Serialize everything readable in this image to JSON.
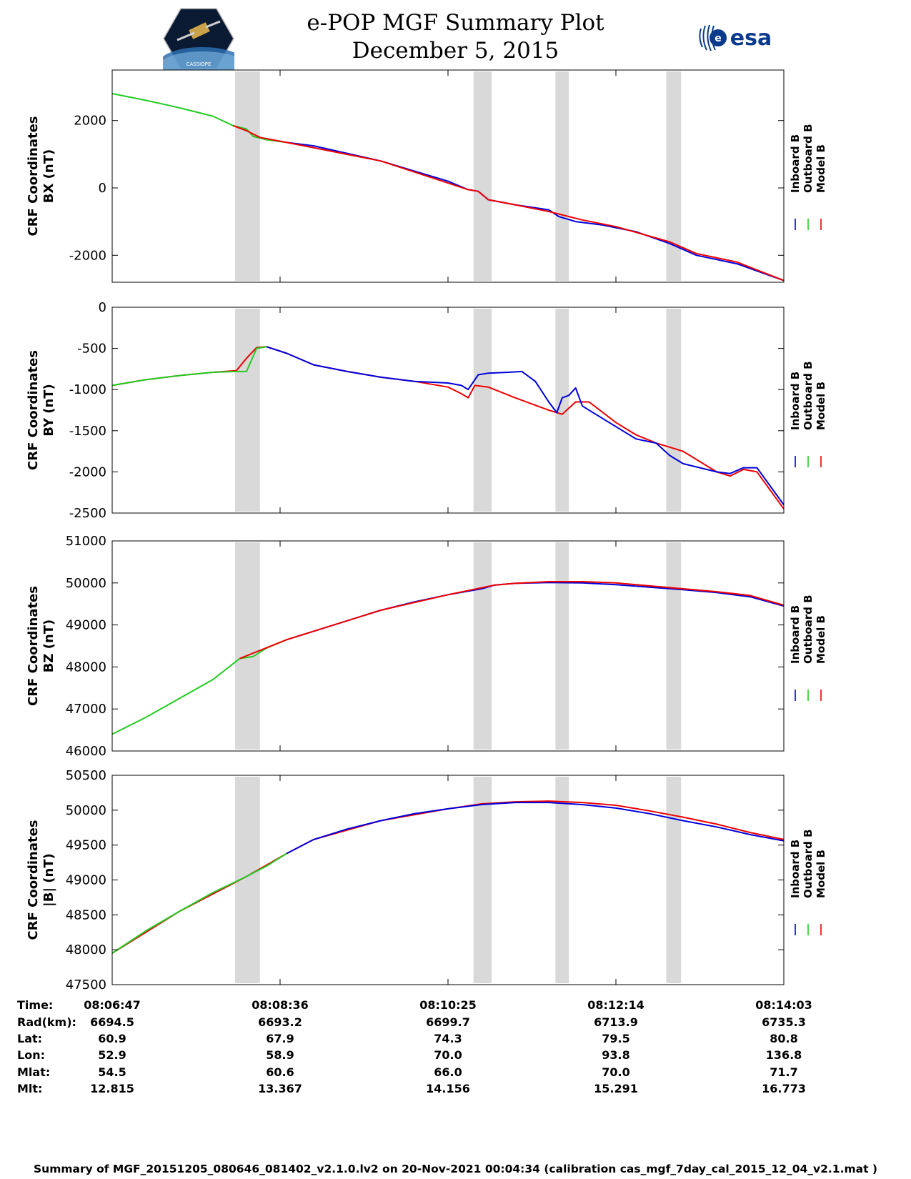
{
  "header": {
    "title": "e-POP MGF Summary Plot",
    "date": "December 5, 2015",
    "esa_logo_text": "esa",
    "cassiope_logo_text": "CASSIOPE"
  },
  "colors": {
    "inboard": "#0000dd",
    "outboard": "#22cc22",
    "model": "#ee0000",
    "shade": "#d9d9d9"
  },
  "legend": [
    "Inboard B",
    "Outboard B",
    "Model B"
  ],
  "chart_data": [
    {
      "type": "line",
      "id": "bx",
      "ylabel_line1": "CRF Coordinates",
      "ylabel_line2": "BX (nT)",
      "ylim": [
        -2800,
        3500
      ],
      "yticks": [
        2000,
        0,
        -2000
      ],
      "shaded_minutes": [
        [
          1.83,
          2.2
        ],
        [
          5.38,
          5.65
        ],
        [
          6.6,
          6.8
        ],
        [
          8.25,
          8.47
        ]
      ],
      "series": [
        {
          "name": "Outboard B",
          "x": [
            0,
            0.5,
            1.0,
            1.5,
            1.8,
            2.0,
            2.1,
            2.3,
            2.6
          ],
          "y": [
            2800,
            2600,
            2380,
            2130,
            1850,
            1750,
            1530,
            1430,
            1350
          ]
        },
        {
          "name": "Inboard B",
          "x": [
            2.6,
            3.0,
            4.0,
            5.0,
            5.3,
            5.45,
            5.6,
            6.0,
            6.5,
            6.65,
            6.9,
            7.3,
            7.8,
            8.3,
            8.7,
            9.3,
            10.0
          ],
          "y": [
            1350,
            1250,
            800,
            200,
            -50,
            -100,
            -350,
            -500,
            -650,
            -850,
            -1000,
            -1100,
            -1300,
            -1650,
            -2000,
            -2250,
            -2750
          ]
        },
        {
          "name": "Model B",
          "x": [
            1.8,
            2.0,
            2.2,
            2.6,
            4.0,
            5.3,
            5.45,
            5.6,
            6.0,
            6.5,
            7.0,
            7.5,
            8.3,
            8.7,
            9.3,
            10.0
          ],
          "y": [
            1850,
            1700,
            1500,
            1350,
            800,
            -50,
            -100,
            -350,
            -500,
            -700,
            -950,
            -1150,
            -1600,
            -1950,
            -2200,
            -2750
          ]
        }
      ]
    },
    {
      "type": "line",
      "id": "by",
      "ylabel_line1": "CRF Coordinates",
      "ylabel_line2": "BY (nT)",
      "ylim": [
        -2500,
        0
      ],
      "yticks": [
        0,
        -500,
        -1000,
        -1500,
        -2000,
        -2500
      ],
      "shaded_minutes": [
        [
          1.83,
          2.2
        ],
        [
          5.38,
          5.65
        ],
        [
          6.6,
          6.8
        ],
        [
          8.25,
          8.47
        ]
      ],
      "series": [
        {
          "name": "Model B",
          "x": [
            0,
            0.5,
            1.0,
            1.5,
            1.85,
            2.0,
            2.15,
            2.3,
            2.6,
            3.0,
            3.5,
            4.0,
            4.5,
            5.0,
            5.2,
            5.3,
            5.4,
            5.6,
            6.0,
            6.5,
            6.7,
            6.9,
            7.1,
            7.5,
            7.8,
            8.1,
            8.5,
            9.0,
            9.2,
            9.4,
            9.6,
            10.0
          ],
          "y": [
            -950,
            -880,
            -830,
            -790,
            -770,
            -620,
            -490,
            -480,
            -560,
            -700,
            -780,
            -850,
            -900,
            -970,
            -1050,
            -1100,
            -950,
            -970,
            -1100,
            -1250,
            -1300,
            -1150,
            -1150,
            -1400,
            -1550,
            -1650,
            -1750,
            -2000,
            -2050,
            -1970,
            -2000,
            -2450
          ]
        },
        {
          "name": "Inboard B",
          "x": [
            2.3,
            2.6,
            3.0,
            3.5,
            4.0,
            4.5,
            5.0,
            5.2,
            5.3,
            5.45,
            5.6,
            5.9,
            6.1,
            6.3,
            6.5,
            6.62,
            6.7,
            6.8,
            6.9,
            7.0,
            7.2,
            7.4,
            7.8,
            8.1,
            8.3,
            8.5,
            9.0,
            9.2,
            9.4,
            9.6,
            10.0
          ],
          "y": [
            -480,
            -560,
            -700,
            -780,
            -850,
            -900,
            -920,
            -950,
            -1000,
            -820,
            -800,
            -790,
            -780,
            -900,
            -1150,
            -1280,
            -1100,
            -1070,
            -980,
            -1200,
            -1300,
            -1400,
            -1600,
            -1650,
            -1800,
            -1900,
            -2000,
            -2020,
            -1950,
            -1950,
            -2400
          ]
        },
        {
          "name": "Outboard B",
          "x": [
            0,
            0.5,
            1.0,
            1.5,
            1.85,
            2.0,
            2.15,
            2.3
          ],
          "y": [
            -950,
            -880,
            -830,
            -790,
            -780,
            -780,
            -500,
            -480
          ]
        }
      ]
    },
    {
      "type": "line",
      "id": "bz",
      "ylabel_line1": "CRF Coordinates",
      "ylabel_line2": "BZ (nT)",
      "ylim": [
        46000,
        51000
      ],
      "yticks": [
        51000,
        50000,
        49000,
        48000,
        47000,
        46000
      ],
      "shaded_minutes": [
        [
          1.83,
          2.2
        ],
        [
          5.38,
          5.65
        ],
        [
          6.6,
          6.8
        ],
        [
          8.25,
          8.47
        ]
      ],
      "series": [
        {
          "name": "Outboard B",
          "x": [
            0,
            0.5,
            1.0,
            1.5,
            1.9,
            2.1,
            2.3,
            2.6
          ],
          "y": [
            46400,
            46800,
            47250,
            47700,
            48200,
            48250,
            48450,
            48650
          ]
        },
        {
          "name": "Inboard B",
          "x": [
            2.6,
            3.0,
            3.5,
            4.0,
            4.5,
            5.0,
            5.5,
            5.7,
            6.0,
            6.5,
            7.0,
            7.5,
            8.0,
            8.5,
            9.0,
            9.5,
            10.0
          ],
          "y": [
            48650,
            48850,
            49100,
            49350,
            49550,
            49720,
            49860,
            49950,
            49990,
            50010,
            50000,
            49960,
            49900,
            49840,
            49770,
            49670,
            49450
          ]
        },
        {
          "name": "Model B",
          "x": [
            1.9,
            2.6,
            4.0,
            5.0,
            5.7,
            6.0,
            6.5,
            7.0,
            7.5,
            8.0,
            8.5,
            9.0,
            9.5,
            10.0
          ],
          "y": [
            48200,
            48650,
            49350,
            49720,
            49950,
            49990,
            50030,
            50030,
            50000,
            49930,
            49860,
            49790,
            49700,
            49470
          ]
        }
      ]
    },
    {
      "type": "line",
      "id": "bmag",
      "ylabel_line1": "CRF Coordinates",
      "ylabel_line2": "|B| (nT)",
      "ylim": [
        47500,
        50500
      ],
      "yticks": [
        50500,
        50000,
        49500,
        49000,
        48500,
        48000,
        47500
      ],
      "shaded_minutes": [
        [
          1.83,
          2.2
        ],
        [
          5.38,
          5.65
        ],
        [
          6.6,
          6.8
        ],
        [
          8.25,
          8.47
        ]
      ],
      "series": [
        {
          "name": "Model B",
          "x": [
            0,
            1.0,
            2.0,
            2.6,
            3.0,
            4.0,
            5.0,
            5.5,
            6.0,
            6.5,
            7.0,
            7.5,
            8.0,
            8.5,
            9.0,
            9.5,
            10.0
          ],
          "y": [
            47950,
            48550,
            49050,
            49380,
            49580,
            49850,
            50020,
            50090,
            50120,
            50130,
            50110,
            50070,
            49990,
            49900,
            49800,
            49680,
            49580
          ]
        },
        {
          "name": "Outboard B",
          "x": [
            0,
            0.5,
            1.0,
            1.5,
            2.0,
            2.3,
            2.6
          ],
          "y": [
            47950,
            48270,
            48550,
            48820,
            49050,
            49200,
            49380
          ]
        },
        {
          "name": "Inboard B",
          "x": [
            2.6,
            3.0,
            3.5,
            4.0,
            4.5,
            5.0,
            5.5,
            6.0,
            6.5,
            7.0,
            7.5,
            8.0,
            8.5,
            9.0,
            9.5,
            10.0
          ],
          "y": [
            49380,
            49580,
            49730,
            49850,
            49950,
            50020,
            50080,
            50110,
            50110,
            50080,
            50030,
            49950,
            49850,
            49760,
            49650,
            49560
          ]
        }
      ]
    }
  ],
  "orbit_table": {
    "labels": [
      "Time:",
      "Rad(km):",
      "Lat:",
      "Lon:",
      "Mlat:",
      "Mlt:"
    ],
    "columns": [
      [
        "08:06:47",
        "6694.5",
        "60.9",
        "52.9",
        "54.5",
        "12.815"
      ],
      [
        "08:08:36",
        "6693.2",
        "67.9",
        "58.9",
        "60.6",
        "13.367"
      ],
      [
        "08:10:25",
        "6699.7",
        "74.3",
        "70.0",
        "66.0",
        "14.156"
      ],
      [
        "08:12:14",
        "6713.9",
        "79.5",
        "93.8",
        "70.0",
        "15.291"
      ],
      [
        "08:14:03",
        "6735.3",
        "80.8",
        "136.8",
        "71.7",
        "16.773"
      ]
    ]
  },
  "footer": "Summary of MGF_20151205_080646_081402_v2.1.0.lv2 on 20-Nov-2021 00:04:34 (calibration cas_mgf_7day_cal_2015_12_04_v2.1.mat )"
}
